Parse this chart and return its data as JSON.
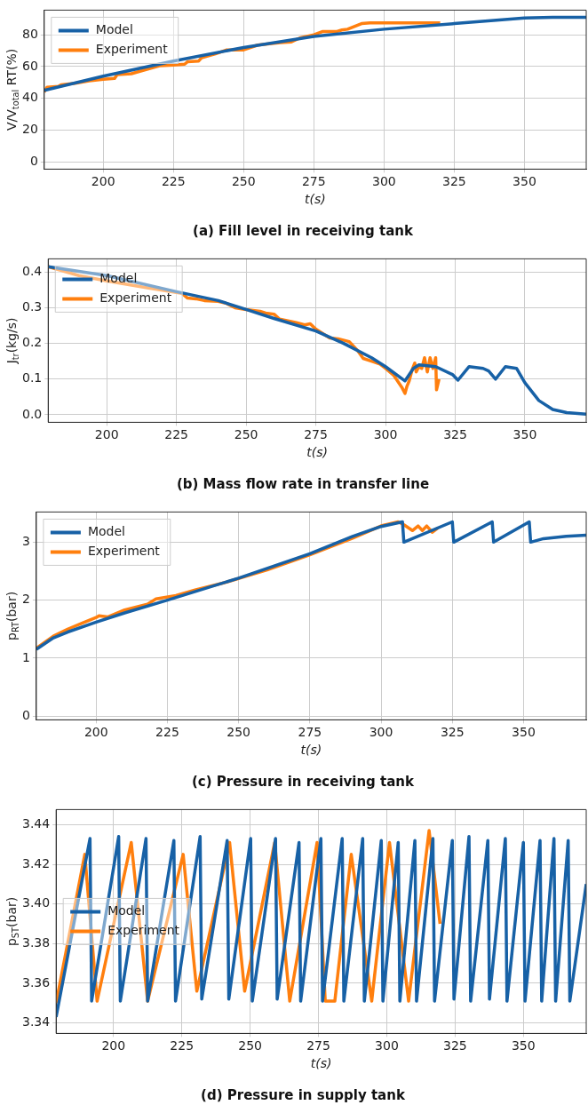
{
  "chart_data": [
    {
      "type": "line",
      "title": "(a) Fill level in receiving tank",
      "xlabel": "t(s)",
      "ylabel": "V/V$_{total}$ RT(%)",
      "xlim": [
        179,
        372
      ],
      "xticks": [
        200,
        225,
        250,
        275,
        300,
        325,
        350
      ],
      "ylim": [
        -4.5,
        95.5
      ],
      "yticks": [
        0,
        20,
        40,
        60,
        80
      ],
      "grid": true,
      "legend": "top left",
      "series": [
        {
          "name": "Model",
          "color": "#1761a6",
          "x": [
            179,
            200,
            225,
            250,
            275,
            300,
            325,
            350,
            360,
            372
          ],
          "values": [
            45,
            54,
            63.5,
            72,
            79,
            83.5,
            87,
            90.5,
            91,
            91
          ]
        },
        {
          "name": "Experiment",
          "color": "#ff7f0e",
          "x": [
            179,
            180,
            184,
            185,
            190,
            195,
            200,
            204,
            205,
            210,
            215,
            220,
            225,
            229,
            230,
            234,
            235,
            240,
            244,
            250,
            255,
            260,
            263,
            267,
            270,
            275,
            278,
            283,
            285,
            287,
            292,
            295,
            320
          ],
          "values": [
            44,
            47,
            47.5,
            48.5,
            49.5,
            51,
            52,
            52.5,
            55,
            55.5,
            58,
            60.5,
            61,
            61.5,
            63,
            63.5,
            65.5,
            68,
            70.5,
            70.5,
            73.5,
            74.5,
            75,
            75.5,
            78,
            80,
            82,
            82,
            83,
            83.5,
            87,
            87.5,
            87.5
          ]
        }
      ]
    },
    {
      "type": "line",
      "title": "(b) Mass flow rate in transfer line",
      "xlabel": "t(s)",
      "ylabel": "J$_{tr}$(kg/s)",
      "xlim": [
        179,
        372
      ],
      "xticks": [
        200,
        225,
        250,
        275,
        300,
        325,
        350
      ],
      "ylim": [
        -0.021,
        0.437
      ],
      "yticks": [
        {
          "value": 0,
          "label": "0.0"
        },
        0.1,
        0.2,
        0.3,
        0.4
      ],
      "grid": true,
      "legend": "top left",
      "series": [
        {
          "name": "Model",
          "color": "#1761a6",
          "x": [
            179,
            200,
            225,
            240,
            250,
            260,
            275,
            285,
            295,
            300,
            307,
            310,
            312,
            318,
            324,
            326,
            330,
            335,
            337,
            339.5,
            343,
            347,
            350,
            355,
            360,
            365,
            372
          ],
          "values": [
            0.415,
            0.39,
            0.345,
            0.32,
            0.295,
            0.27,
            0.235,
            0.2,
            0.16,
            0.135,
            0.095,
            0.13,
            0.14,
            0.135,
            0.113,
            0.097,
            0.135,
            0.13,
            0.123,
            0.1,
            0.135,
            0.13,
            0.09,
            0.04,
            0.015,
            0.006,
            0.002
          ]
        },
        {
          "name": "Experiment",
          "color": "#ff7f0e",
          "x": [
            179,
            190,
            200,
            215,
            227,
            229,
            232,
            235,
            240,
            243,
            246,
            250,
            255,
            257,
            260,
            262,
            268,
            271,
            273,
            275,
            280,
            283,
            287,
            290,
            292,
            295,
            298,
            300,
            303,
            306,
            307,
            307.7,
            308.5,
            309.5,
            310.5,
            311,
            312,
            313,
            314,
            315,
            316,
            317,
            318,
            318.3,
            319.2
          ],
          "values": [
            0.415,
            0.39,
            0.375,
            0.355,
            0.34,
            0.327,
            0.325,
            0.32,
            0.318,
            0.312,
            0.3,
            0.295,
            0.29,
            0.285,
            0.282,
            0.268,
            0.258,
            0.252,
            0.255,
            0.24,
            0.215,
            0.213,
            0.205,
            0.18,
            0.158,
            0.15,
            0.142,
            0.13,
            0.11,
            0.075,
            0.06,
            0.08,
            0.095,
            0.125,
            0.145,
            0.12,
            0.135,
            0.13,
            0.16,
            0.12,
            0.16,
            0.13,
            0.16,
            0.07,
            0.1
          ]
        }
      ]
    },
    {
      "type": "line",
      "title": "(c) Pressure in receiving tank",
      "xlabel": "t(s)",
      "ylabel": "p$_{RT}$(bar)",
      "xlim": [
        179,
        372
      ],
      "xticks": [
        200,
        225,
        250,
        275,
        300,
        325,
        350
      ],
      "ylim": [
        -0.065,
        3.52
      ],
      "yticks": [
        0,
        1,
        2,
        3
      ],
      "grid": true,
      "legend": "top left",
      "series": [
        {
          "name": "Model",
          "color": "#1761a6",
          "x": [
            179,
            185,
            190,
            200,
            210,
            225,
            250,
            275,
            290,
            300,
            307.5,
            308,
            325,
            325.5,
            339,
            339.5,
            352,
            352.5,
            357,
            365,
            372
          ],
          "values": [
            1.15,
            1.35,
            1.45,
            1.62,
            1.78,
            2.0,
            2.38,
            2.8,
            3.1,
            3.27,
            3.35,
            3.0,
            3.35,
            3.0,
            3.35,
            3.0,
            3.35,
            3.0,
            3.06,
            3.1,
            3.12
          ]
        },
        {
          "name": "Experiment",
          "color": "#ff7f0e",
          "x": [
            179,
            185,
            190,
            195,
            200,
            201,
            204,
            210,
            218,
            221,
            228,
            235,
            245,
            260,
            275,
            290,
            300,
            306,
            308,
            311,
            313,
            314.5,
            316,
            318,
            320
          ],
          "values": [
            1.17,
            1.38,
            1.5,
            1.6,
            1.7,
            1.73,
            1.71,
            1.83,
            1.93,
            2.02,
            2.08,
            2.18,
            2.3,
            2.52,
            2.78,
            3.07,
            3.28,
            3.35,
            3.3,
            3.2,
            3.28,
            3.2,
            3.28,
            3.17,
            3.25
          ]
        }
      ]
    },
    {
      "type": "line",
      "title": "(d) Pressure in supply tank",
      "xlabel": "t(s)",
      "ylabel": "p$_{ST}$(bar)",
      "xlim": [
        179,
        373
      ],
      "xticks": [
        200,
        225,
        250,
        275,
        300,
        325,
        350
      ],
      "ylim": [
        3.3347,
        3.4476
      ],
      "yticks": [
        {
          "value": 3.34,
          "label": "3.34"
        },
        {
          "value": 3.36,
          "label": "3.36"
        },
        {
          "value": 3.38,
          "label": "3.38"
        },
        {
          "value": 3.4,
          "label": "3.40"
        },
        {
          "value": 3.42,
          "label": "3.42"
        },
        {
          "value": 3.44,
          "label": "3.44"
        }
      ],
      "grid": true,
      "legend": "left",
      "series": [
        {
          "name": "Model",
          "color": "#1761a6",
          "x": [
            179,
            191.4,
            192,
            201.9,
            202.5,
            211.9,
            212.5,
            222.1,
            222.7,
            231.7,
            232.3,
            241.6,
            242.2,
            250.2,
            250.8,
            259.3,
            259.9,
            267.9,
            268.5,
            275.9,
            276.5,
            283.7,
            284.3,
            291.2,
            291.8,
            298,
            298.6,
            304.2,
            304.8,
            310.3,
            310.9,
            316.9,
            317.5,
            324,
            324.6,
            330.1,
            330.7,
            337,
            337.6,
            343.4,
            344,
            350,
            350.6,
            356.1,
            356.7,
            361.2,
            361.8,
            366.4,
            367,
            373
          ],
          "values": [
            3.343,
            3.433,
            3.351,
            3.434,
            3.351,
            3.433,
            3.351,
            3.432,
            3.351,
            3.434,
            3.352,
            3.432,
            3.352,
            3.433,
            3.351,
            3.433,
            3.352,
            3.431,
            3.351,
            3.433,
            3.351,
            3.433,
            3.351,
            3.433,
            3.351,
            3.432,
            3.351,
            3.431,
            3.351,
            3.432,
            3.351,
            3.433,
            3.351,
            3.432,
            3.352,
            3.434,
            3.351,
            3.432,
            3.352,
            3.433,
            3.351,
            3.431,
            3.351,
            3.432,
            3.351,
            3.433,
            3.351,
            3.432,
            3.351,
            3.41
          ]
        },
        {
          "name": "Experiment",
          "color": "#ff7f0e",
          "x": [
            179,
            189.5,
            194,
            206.5,
            212.5,
            225.5,
            230.5,
            242.5,
            248,
            259,
            264.5,
            274.5,
            277.5,
            281,
            287,
            294.5,
            301,
            308,
            315.5,
            319.5
          ],
          "values": [
            3.35,
            3.425,
            3.351,
            3.431,
            3.351,
            3.425,
            3.356,
            3.431,
            3.356,
            3.431,
            3.351,
            3.431,
            3.351,
            3.351,
            3.425,
            3.351,
            3.431,
            3.351,
            3.437,
            3.39
          ]
        }
      ]
    }
  ]
}
